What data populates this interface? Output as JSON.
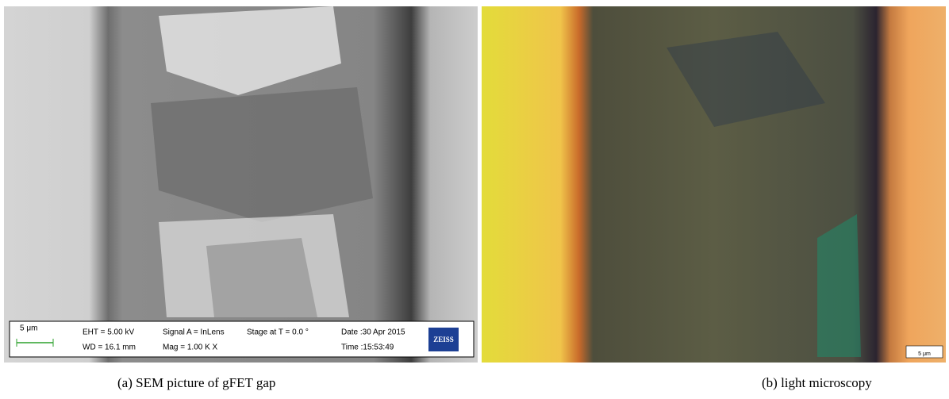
{
  "panels": [
    {
      "caption": "(a) SEM picture of gFET gap",
      "info_bar": {
        "scale": "5 μm",
        "eht": "EHT = 5.00 kV",
        "wd": "WD = 16.1 mm",
        "signal": "Signal A = InLens",
        "mag": "Mag =  1.00 K X",
        "stage": "Stage at T =  0.0 °",
        "date": "Date :30 Apr 2015",
        "time": "Time :15:53:49",
        "logo": "ZEISS"
      }
    },
    {
      "caption": "(b) light microscopy",
      "scale": "5 μm"
    }
  ]
}
